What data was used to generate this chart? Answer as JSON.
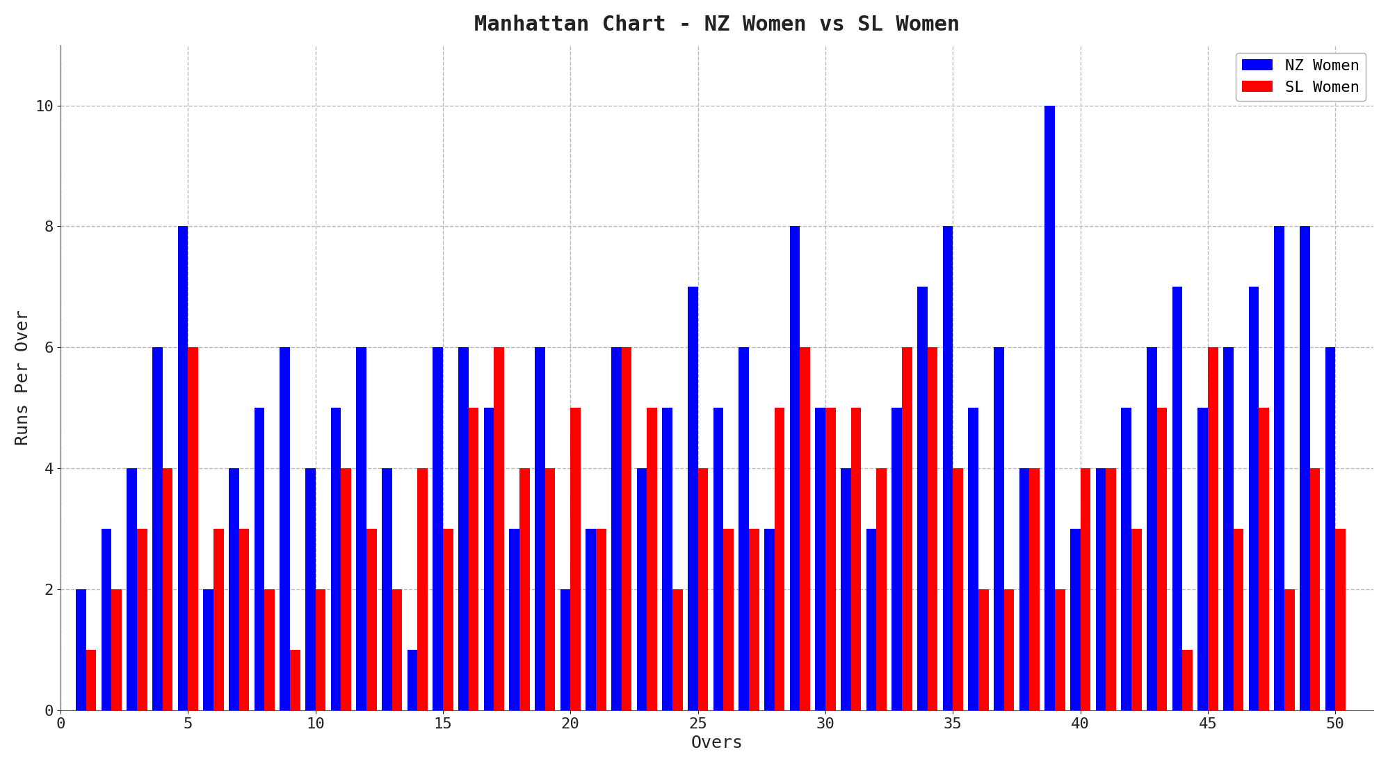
{
  "title": "Manhattan Chart - NZ Women vs SL Women",
  "xlabel": "Overs",
  "ylabel": "Runs Per Over",
  "nz_women": [
    2,
    3,
    4,
    6,
    8,
    2,
    4,
    5,
    6,
    4,
    5,
    6,
    4,
    1,
    6,
    6,
    5,
    3,
    6,
    2,
    3,
    6,
    4,
    5,
    7,
    5,
    6,
    3,
    8,
    5,
    4,
    3,
    5,
    7,
    8,
    5,
    6,
    4,
    10,
    3,
    4,
    5,
    6,
    7,
    5,
    6,
    7,
    8,
    8,
    6
  ],
  "sl_women": [
    1,
    2,
    3,
    4,
    6,
    3,
    3,
    2,
    1,
    2,
    4,
    3,
    2,
    4,
    3,
    5,
    6,
    4,
    4,
    5,
    3,
    6,
    5,
    2,
    4,
    3,
    3,
    5,
    6,
    5,
    5,
    4,
    6,
    6,
    4,
    2,
    2,
    4,
    2,
    4,
    4,
    3,
    5,
    1,
    6,
    3,
    5,
    2,
    4,
    3
  ],
  "nz_color": "#0000ff",
  "sl_color": "#ff0000",
  "background_color": "#ffffff",
  "ylim": [
    0,
    11.0
  ],
  "yticks": [
    0,
    2,
    4,
    6,
    8,
    10
  ],
  "xticks": [
    0,
    5,
    10,
    15,
    20,
    25,
    30,
    35,
    40,
    45,
    50
  ],
  "title_fontsize": 22,
  "axis_label_fontsize": 18,
  "tick_fontsize": 16,
  "legend_fontsize": 16,
  "bar_width": 0.4,
  "grid_color": "#bbbbbb",
  "grid_linestyle": "--"
}
